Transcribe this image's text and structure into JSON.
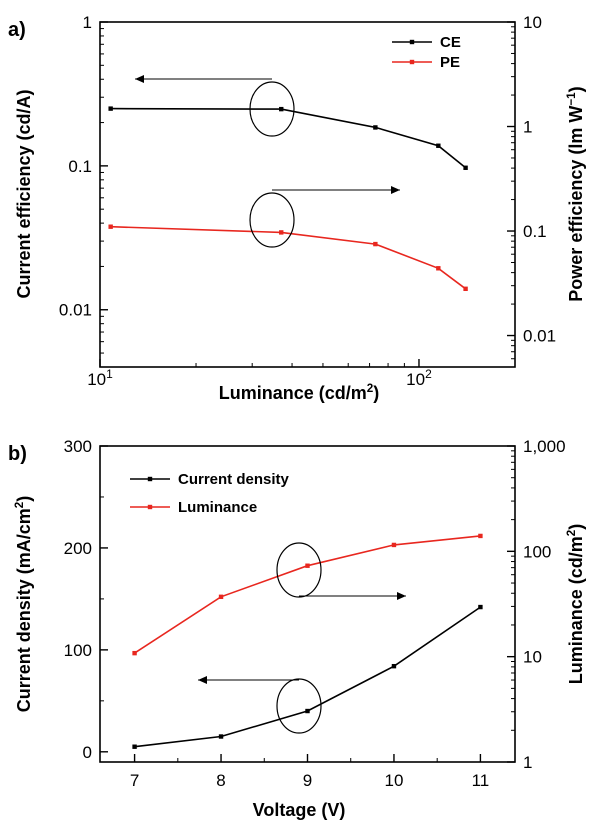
{
  "chart_data": [
    {
      "panel_label": "a)",
      "type": "line",
      "xscale": "log",
      "xlim": [
        10,
        200
      ],
      "xlabel": "Luminance (cd/m",
      "xlabel_sup": "2",
      "xlabel_end": ")",
      "x_ticks": [
        {
          "value": 10,
          "base": "10",
          "exp": "1"
        },
        {
          "value": 100,
          "base": "10",
          "exp": "2"
        }
      ],
      "left_axis": {
        "label": "Current efficiency (cd/A)",
        "scale": "log",
        "lim": [
          0.004,
          1
        ],
        "ticks": [
          {
            "value": 1,
            "label": "1"
          },
          {
            "value": 0.1,
            "label": "0.1"
          },
          {
            "value": 0.01,
            "label": "0.01"
          }
        ]
      },
      "right_axis": {
        "label": "Power efficiency (lm W",
        "label_sup": "−1",
        "label_end": ")",
        "scale": "log",
        "lim": [
          0.005,
          10
        ],
        "ticks": [
          {
            "value": 10,
            "label": "10"
          },
          {
            "value": 1,
            "label": "1"
          },
          {
            "value": 0.1,
            "label": "0.1"
          },
          {
            "value": 0.01,
            "label": "0.01"
          }
        ]
      },
      "legend_position": "top-right",
      "series": [
        {
          "name": "CE",
          "axis": "left",
          "color": "#000000",
          "x": [
            10.8,
            37,
            73,
            115,
            140
          ],
          "y": [
            0.25,
            0.248,
            0.185,
            0.138,
            0.097
          ]
        },
        {
          "name": "PE",
          "axis": "right",
          "color": "#e8271f",
          "x": [
            10.8,
            37,
            73,
            115,
            140
          ],
          "y": [
            0.11,
            0.097,
            0.075,
            0.044,
            0.028
          ]
        }
      ]
    },
    {
      "panel_label": "b)",
      "type": "line",
      "xlim": [
        6.6,
        11.4
      ],
      "xlabel": "Voltage (V)",
      "x_ticks": [
        {
          "value": 7,
          "label": "7"
        },
        {
          "value": 8,
          "label": "8"
        },
        {
          "value": 9,
          "label": "9"
        },
        {
          "value": 10,
          "label": "10"
        },
        {
          "value": 11,
          "label": "11"
        }
      ],
      "left_axis": {
        "label": "Current density (mA/cm",
        "label_sup": "2",
        "label_end": ")",
        "scale": "linear",
        "lim": [
          -10,
          300
        ],
        "ticks": [
          {
            "value": 0,
            "label": "0"
          },
          {
            "value": 100,
            "label": "100"
          },
          {
            "value": 200,
            "label": "200"
          },
          {
            "value": 300,
            "label": "300"
          }
        ]
      },
      "right_axis": {
        "label": "Luminance (cd/m",
        "label_sup": "2",
        "label_end": ")",
        "scale": "log",
        "lim": [
          1,
          1000
        ],
        "ticks": [
          {
            "value": 1000,
            "label": "1,000"
          },
          {
            "value": 100,
            "label": "100"
          },
          {
            "value": 10,
            "label": "10"
          },
          {
            "value": 1,
            "label": "1"
          }
        ]
      },
      "legend_position": "top-left",
      "series": [
        {
          "name": "Current density",
          "axis": "left",
          "color": "#000000",
          "x": [
            7,
            8,
            9,
            10,
            11
          ],
          "y": [
            5,
            15,
            40,
            84,
            142
          ]
        },
        {
          "name": "Luminance",
          "axis": "right",
          "color": "#e8271f",
          "x": [
            7,
            8,
            9,
            10,
            11
          ],
          "y": [
            10.8,
            37,
            73,
            115,
            140
          ]
        }
      ]
    }
  ]
}
